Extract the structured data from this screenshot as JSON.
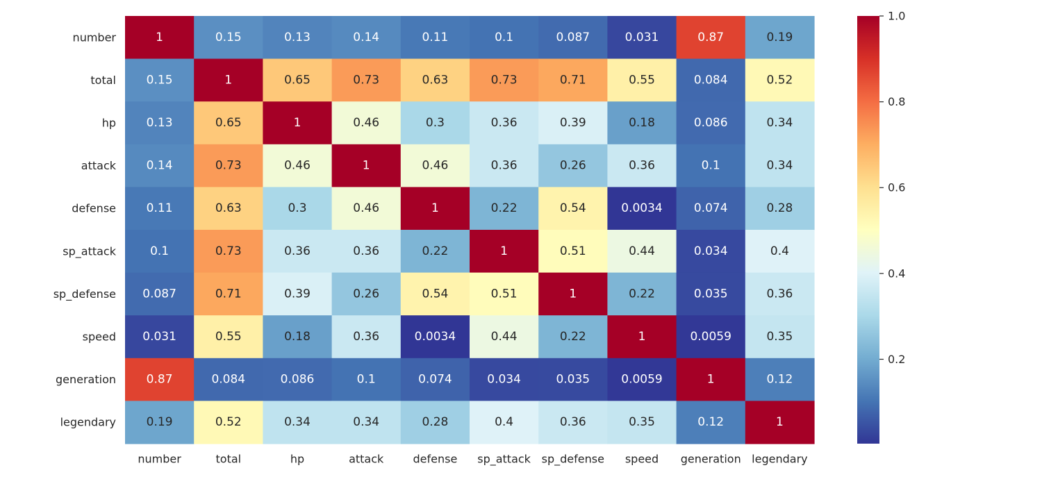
{
  "chart_data": {
    "type": "heatmap",
    "title": "",
    "xlabel": "",
    "ylabel": "",
    "row_labels": [
      "number",
      "total",
      "hp",
      "attack",
      "defense",
      "sp_attack",
      "sp_defense",
      "speed",
      "generation",
      "legendary"
    ],
    "col_labels": [
      "number",
      "total",
      "hp",
      "attack",
      "defense",
      "sp_attack",
      "sp_defense",
      "speed",
      "generation",
      "legendary"
    ],
    "values": [
      [
        1,
        0.15,
        0.13,
        0.14,
        0.11,
        0.1,
        0.087,
        0.031,
        0.87,
        0.19
      ],
      [
        0.15,
        1,
        0.65,
        0.73,
        0.63,
        0.73,
        0.71,
        0.55,
        0.084,
        0.52
      ],
      [
        0.13,
        0.65,
        1,
        0.46,
        0.3,
        0.36,
        0.39,
        0.18,
        0.086,
        0.34
      ],
      [
        0.14,
        0.73,
        0.46,
        1,
        0.46,
        0.36,
        0.26,
        0.36,
        0.1,
        0.34
      ],
      [
        0.11,
        0.63,
        0.3,
        0.46,
        1,
        0.22,
        0.54,
        0.0034,
        0.074,
        0.28
      ],
      [
        0.1,
        0.73,
        0.36,
        0.36,
        0.22,
        1,
        0.51,
        0.44,
        0.034,
        0.4
      ],
      [
        0.087,
        0.71,
        0.39,
        0.26,
        0.54,
        0.51,
        1,
        0.22,
        0.035,
        0.36
      ],
      [
        0.031,
        0.55,
        0.18,
        0.36,
        0.0034,
        0.44,
        0.22,
        1,
        0.0059,
        0.35
      ],
      [
        0.87,
        0.084,
        0.086,
        0.1,
        0.074,
        0.034,
        0.035,
        0.0059,
        1,
        0.12
      ],
      [
        0.19,
        0.52,
        0.34,
        0.34,
        0.28,
        0.4,
        0.36,
        0.35,
        0.12,
        1
      ]
    ],
    "value_labels": [
      [
        "1",
        "0.15",
        "0.13",
        "0.14",
        "0.11",
        "0.1",
        "0.087",
        "0.031",
        "0.87",
        "0.19"
      ],
      [
        "0.15",
        "1",
        "0.65",
        "0.73",
        "0.63",
        "0.73",
        "0.71",
        "0.55",
        "0.084",
        "0.52"
      ],
      [
        "0.13",
        "0.65",
        "1",
        "0.46",
        "0.3",
        "0.36",
        "0.39",
        "0.18",
        "0.086",
        "0.34"
      ],
      [
        "0.14",
        "0.73",
        "0.46",
        "1",
        "0.46",
        "0.36",
        "0.26",
        "0.36",
        "0.1",
        "0.34"
      ],
      [
        "0.11",
        "0.63",
        "0.3",
        "0.46",
        "1",
        "0.22",
        "0.54",
        "0.0034",
        "0.074",
        "0.28"
      ],
      [
        "0.1",
        "0.73",
        "0.36",
        "0.36",
        "0.22",
        "1",
        "0.51",
        "0.44",
        "0.034",
        "0.4"
      ],
      [
        "0.087",
        "0.71",
        "0.39",
        "0.26",
        "0.54",
        "0.51",
        "1",
        "0.22",
        "0.035",
        "0.36"
      ],
      [
        "0.031",
        "0.55",
        "0.18",
        "0.36",
        "0.0034",
        "0.44",
        "0.22",
        "1",
        "0.0059",
        "0.35"
      ],
      [
        "0.87",
        "0.084",
        "0.086",
        "0.1",
        "0.074",
        "0.034",
        "0.035",
        "0.0059",
        "1",
        "0.12"
      ],
      [
        "0.19",
        "0.52",
        "0.34",
        "0.34",
        "0.28",
        "0.4",
        "0.36",
        "0.35",
        "0.12",
        "1"
      ]
    ],
    "colormap": "RdYlBu_r",
    "colormap_stops": [
      "#313695",
      "#4575b4",
      "#74add1",
      "#abd9e9",
      "#e0f3f8",
      "#ffffbf",
      "#fee090",
      "#fdae61",
      "#f46d43",
      "#d73027",
      "#a50026"
    ],
    "vmin": 0.0034,
    "vmax": 1,
    "colorbar": {
      "ticks": [
        0.2,
        0.4,
        0.6,
        0.8,
        1.0
      ],
      "tick_labels": [
        "0.2",
        "0.4",
        "0.6",
        "0.8",
        "1.0"
      ],
      "placement": "right"
    },
    "annotation_colors": {
      "dark": "#262626",
      "light": "#ffffff"
    },
    "grid": false
  }
}
